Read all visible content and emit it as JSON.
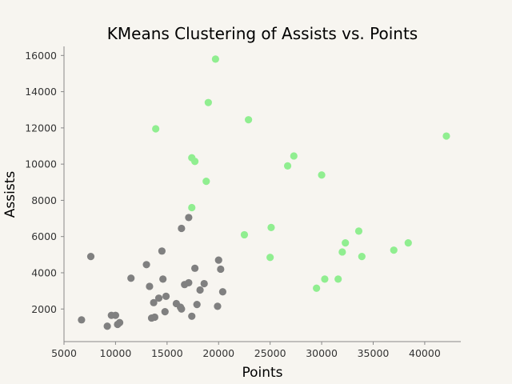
{
  "chart_data": {
    "type": "scatter",
    "title": "KMeans Clustering of Assists vs. Points",
    "xlabel": "Points",
    "ylabel": "Assists",
    "xlim": [
      5000,
      43500
    ],
    "ylim": [
      200,
      16500
    ],
    "xticks": [
      5000,
      10000,
      15000,
      20000,
      25000,
      30000,
      35000,
      40000
    ],
    "yticks": [
      2000,
      4000,
      6000,
      8000,
      10000,
      12000,
      14000,
      16000
    ],
    "grid": false,
    "series": [
      {
        "color": "#808080",
        "points": [
          [
            6700,
            1400
          ],
          [
            7600,
            4900
          ],
          [
            9200,
            1050
          ],
          [
            9600,
            1650
          ],
          [
            10000,
            1650
          ],
          [
            10200,
            1150
          ],
          [
            10400,
            1250
          ],
          [
            11500,
            3700
          ],
          [
            13000,
            4450
          ],
          [
            13300,
            3250
          ],
          [
            13500,
            1500
          ],
          [
            13700,
            2350
          ],
          [
            13800,
            1550
          ],
          [
            14200,
            2600
          ],
          [
            14500,
            5200
          ],
          [
            14600,
            3650
          ],
          [
            14800,
            1850
          ],
          [
            14900,
            2700
          ],
          [
            15900,
            2300
          ],
          [
            16300,
            2100
          ],
          [
            16400,
            6450
          ],
          [
            16400,
            2000
          ],
          [
            16700,
            3350
          ],
          [
            17100,
            3450
          ],
          [
            17100,
            7050
          ],
          [
            17400,
            1600
          ],
          [
            17700,
            4250
          ],
          [
            17900,
            2250
          ],
          [
            18200,
            3050
          ],
          [
            18600,
            3400
          ],
          [
            19900,
            2150
          ],
          [
            20000,
            4700
          ],
          [
            20200,
            4200
          ],
          [
            20400,
            2950
          ]
        ]
      },
      {
        "color": "#90ee90",
        "points": [
          [
            13900,
            11950
          ],
          [
            17400,
            10350
          ],
          [
            17400,
            7600
          ],
          [
            17700,
            10150
          ],
          [
            18800,
            9050
          ],
          [
            19000,
            13400
          ],
          [
            19700,
            15800
          ],
          [
            22500,
            6100
          ],
          [
            22900,
            12450
          ],
          [
            25000,
            4850
          ],
          [
            25100,
            6500
          ],
          [
            26700,
            9900
          ],
          [
            27300,
            10450
          ],
          [
            29500,
            3150
          ],
          [
            30000,
            9400
          ],
          [
            30300,
            3650
          ],
          [
            31600,
            3650
          ],
          [
            32000,
            5150
          ],
          [
            32300,
            5650
          ],
          [
            33600,
            6300
          ],
          [
            33900,
            4900
          ],
          [
            37000,
            5250
          ],
          [
            38400,
            5650
          ],
          [
            42100,
            11550
          ]
        ]
      }
    ]
  }
}
